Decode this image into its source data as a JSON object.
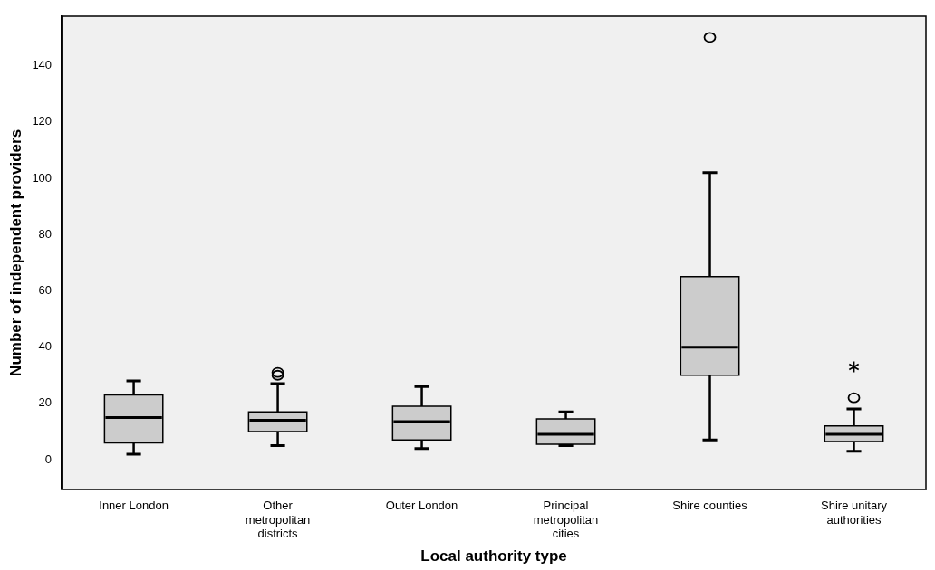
{
  "chart_data": {
    "type": "box",
    "xlabel": "Local authority type",
    "ylabel": "Number of independent providers",
    "categories": [
      "Inner London",
      "Other metropolitan districts",
      "Outer London",
      "Principal metropolitan cities",
      "Shire counties",
      "Shire unitary authorities"
    ],
    "color": "#cccccc",
    "boxes": [
      {
        "low": 2,
        "q1": 6,
        "median": 15,
        "q3": 23,
        "high": 28
      },
      {
        "low": 5,
        "q1": 10,
        "median": 14,
        "q3": 17,
        "high": 27,
        "outliers": [
          30,
          31
        ]
      },
      {
        "low": 4,
        "q1": 7,
        "median": 13.5,
        "q3": 19,
        "high": 26
      },
      {
        "low": 5,
        "q1": 5.5,
        "median": 9,
        "q3": 14.5,
        "high": 17
      },
      {
        "low": 7,
        "q1": 30,
        "median": 40,
        "q3": 65,
        "high": 102,
        "outliers": [
          150
        ]
      },
      {
        "low": 3,
        "q1": 6.5,
        "median": 9,
        "q3": 12,
        "high": 18,
        "outliers": [
          22,
          33
        ]
      }
    ],
    "ylim": [
      -10.5,
      157.5
    ],
    "yticks": [
      0,
      20,
      40,
      60,
      80,
      100,
      120,
      140
    ]
  }
}
